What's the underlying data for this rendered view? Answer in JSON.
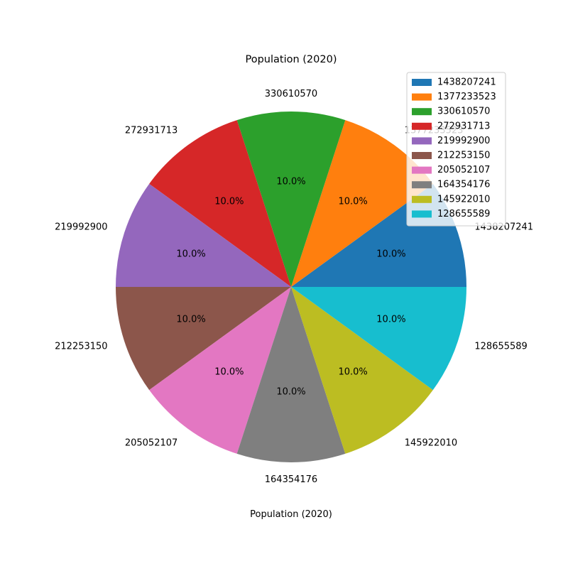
{
  "chart_data": {
    "type": "pie",
    "title": "Population (2020)",
    "xlabel": "Population (2020)",
    "labels": [
      "1438207241",
      "1377233523",
      "330610570",
      "272931713",
      "219992900",
      "212253150",
      "205052107",
      "164354176",
      "145922010",
      "128655589"
    ],
    "values": [
      10,
      10,
      10,
      10,
      10,
      10,
      10,
      10,
      10,
      10
    ],
    "percent_labels": [
      "10.0%",
      "10.0%",
      "10.0%",
      "10.0%",
      "10.0%",
      "10.0%",
      "10.0%",
      "10.0%",
      "10.0%",
      "10.0%"
    ],
    "colors": [
      "#1f77b4",
      "#ff7f0e",
      "#2ca02c",
      "#d62728",
      "#9467bd",
      "#8c564b",
      "#e377c2",
      "#7f7f7f",
      "#bcbd22",
      "#17becf"
    ],
    "legend": {
      "placement": "top-right",
      "entries": [
        "1438207241",
        "1377233523",
        "330610570",
        "272931713",
        "219992900",
        "212253150",
        "205052107",
        "164354176",
        "145922010",
        "128655589"
      ]
    }
  }
}
